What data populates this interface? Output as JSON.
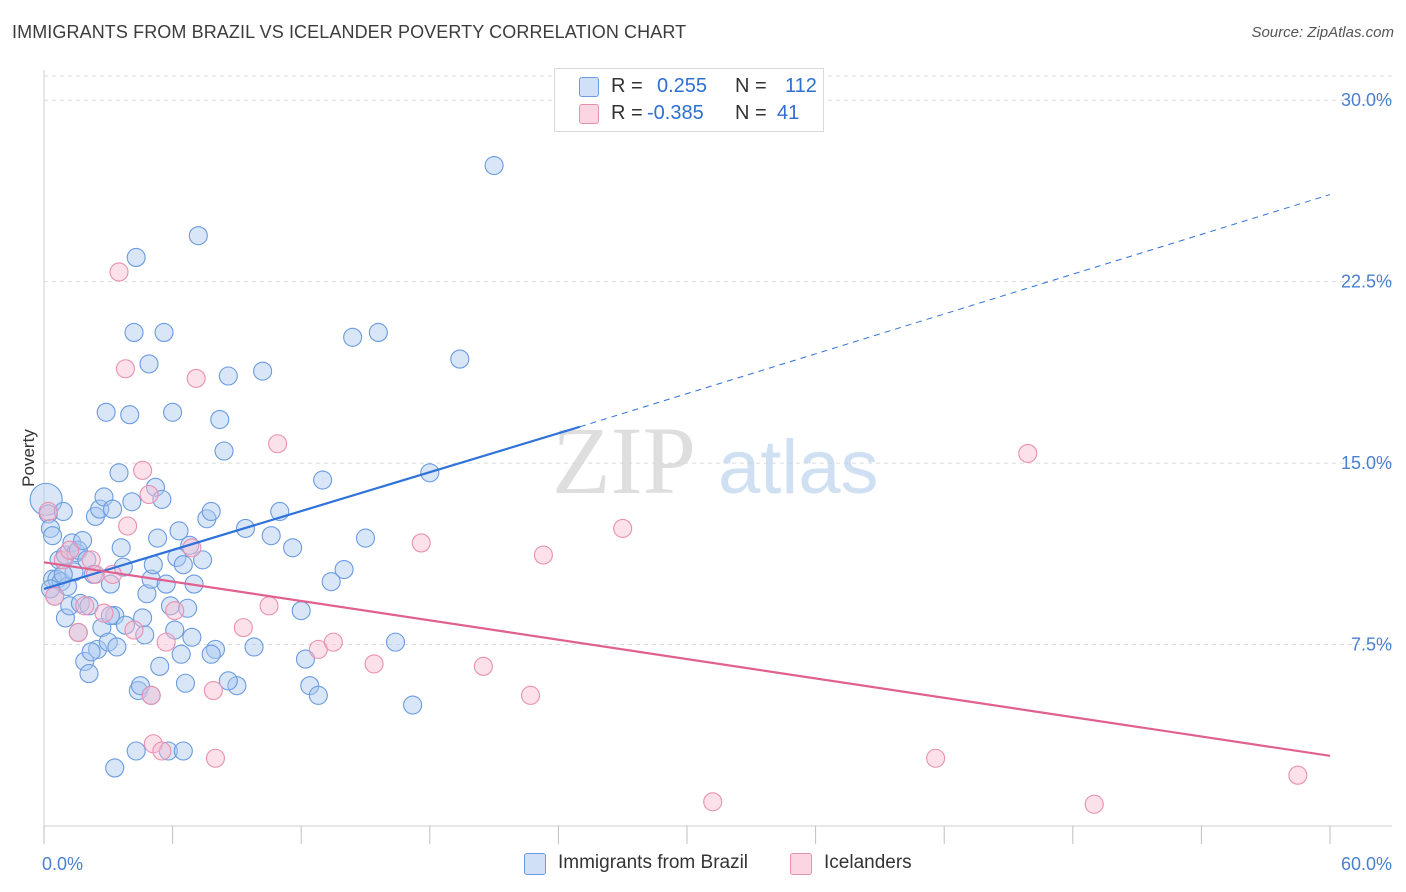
{
  "header": {
    "title": "IMMIGRANTS FROM BRAZIL VS ICELANDER POVERTY CORRELATION CHART",
    "source": "Source: ZipAtlas.com"
  },
  "watermark": {
    "zip": "ZIP",
    "atlas": "atlas"
  },
  "legend": {
    "rows": [
      {
        "r_label": "R =",
        "r_value": "0.255",
        "n_label": "N =",
        "n_value": "112",
        "color": "#a8c8f0",
        "stroke": "#6a9be0"
      },
      {
        "r_label": "R =",
        "r_value": "-0.385",
        "n_label": "N =",
        "n_value": "41",
        "color": "#f8bcd0",
        "stroke": "#e890b0"
      }
    ]
  },
  "bottom_legend": [
    {
      "label": "Immigrants from Brazil",
      "color": "#a8c8f0",
      "stroke": "#6a9be0"
    },
    {
      "label": "Icelanders",
      "color": "#f8bcd0",
      "stroke": "#e890b0"
    }
  ],
  "chart_data": {
    "type": "scatter",
    "title": "IMMIGRANTS FROM BRAZIL VS ICELANDER POVERTY CORRELATION CHART",
    "xlabel": "",
    "ylabel": "Poverty",
    "xlim": [
      0,
      60
    ],
    "ylim": [
      0,
      31
    ],
    "x_tick_labels": [
      {
        "value": 0,
        "label": "0.0%"
      },
      {
        "value": 60,
        "label": "60.0%"
      }
    ],
    "y_tick_labels": [
      {
        "value": 7.5,
        "label": "7.5%"
      },
      {
        "value": 15,
        "label": "15.0%"
      },
      {
        "value": 22.5,
        "label": "22.5%"
      },
      {
        "value": 30,
        "label": "30.0%"
      }
    ],
    "grid": true,
    "legend_position": "top-center",
    "series": [
      {
        "name": "Immigrants from Brazil",
        "color": "#6a9be0",
        "fill": "#a8c8f0",
        "trend": {
          "x0": 0,
          "y0": 9.8,
          "x1": 25,
          "y1": 16.5,
          "dashed_to_x": 60,
          "dashed_to_y": 26.1,
          "color": "#2f72d8"
        },
        "points": [
          [
            0.1,
            13.5
          ],
          [
            0.2,
            12.9
          ],
          [
            0.3,
            12.3
          ],
          [
            0.4,
            12.0
          ],
          [
            0.4,
            10.2
          ],
          [
            0.5,
            9.5
          ],
          [
            0.6,
            10.2
          ],
          [
            0.7,
            11.0
          ],
          [
            0.8,
            10.1
          ],
          [
            0.9,
            13.0
          ],
          [
            1.0,
            8.6
          ],
          [
            1.0,
            11.2
          ],
          [
            1.1,
            9.9
          ],
          [
            1.2,
            9.1
          ],
          [
            1.3,
            11.7
          ],
          [
            1.4,
            10.5
          ],
          [
            1.5,
            11.3
          ],
          [
            1.6,
            11.4
          ],
          [
            1.7,
            9.2
          ],
          [
            1.8,
            11.8
          ],
          [
            1.9,
            6.8
          ],
          [
            2.0,
            11.0
          ],
          [
            2.1,
            9.1
          ],
          [
            2.1,
            6.3
          ],
          [
            2.3,
            10.4
          ],
          [
            2.4,
            12.8
          ],
          [
            2.5,
            7.3
          ],
          [
            2.6,
            13.1
          ],
          [
            2.7,
            8.2
          ],
          [
            2.8,
            13.6
          ],
          [
            2.9,
            17.1
          ],
          [
            3.0,
            7.6
          ],
          [
            3.1,
            10.0
          ],
          [
            3.2,
            13.1
          ],
          [
            3.3,
            8.7
          ],
          [
            3.4,
            7.4
          ],
          [
            3.5,
            14.6
          ],
          [
            3.6,
            11.5
          ],
          [
            3.7,
            10.7
          ],
          [
            3.8,
            8.3
          ],
          [
            4.0,
            17.0
          ],
          [
            4.1,
            13.4
          ],
          [
            4.2,
            20.4
          ],
          [
            4.3,
            23.5
          ],
          [
            4.4,
            5.6
          ],
          [
            4.5,
            5.8
          ],
          [
            4.6,
            8.6
          ],
          [
            4.7,
            7.9
          ],
          [
            4.8,
            9.6
          ],
          [
            4.9,
            19.1
          ],
          [
            5.0,
            10.2
          ],
          [
            5.1,
            10.8
          ],
          [
            5.2,
            14.0
          ],
          [
            5.3,
            11.9
          ],
          [
            5.4,
            6.6
          ],
          [
            5.5,
            13.5
          ],
          [
            5.6,
            20.4
          ],
          [
            5.7,
            10.0
          ],
          [
            5.8,
            3.1
          ],
          [
            5.9,
            9.1
          ],
          [
            6.0,
            17.1
          ],
          [
            6.1,
            8.1
          ],
          [
            6.2,
            11.1
          ],
          [
            6.3,
            12.2
          ],
          [
            6.4,
            7.1
          ],
          [
            6.5,
            10.8
          ],
          [
            6.6,
            5.9
          ],
          [
            6.7,
            9.0
          ],
          [
            6.8,
            11.6
          ],
          [
            6.9,
            7.8
          ],
          [
            7.0,
            10.0
          ],
          [
            7.2,
            24.4
          ],
          [
            7.4,
            11.0
          ],
          [
            7.6,
            12.7
          ],
          [
            7.8,
            13.0
          ],
          [
            8.0,
            7.3
          ],
          [
            8.2,
            16.8
          ],
          [
            8.4,
            15.5
          ],
          [
            8.6,
            18.6
          ],
          [
            9.0,
            5.8
          ],
          [
            9.4,
            12.3
          ],
          [
            9.8,
            7.4
          ],
          [
            10.2,
            18.8
          ],
          [
            10.6,
            12.0
          ],
          [
            11.0,
            13.0
          ],
          [
            11.6,
            11.5
          ],
          [
            12.0,
            8.9
          ],
          [
            12.4,
            5.8
          ],
          [
            12.8,
            5.4
          ],
          [
            13.0,
            14.3
          ],
          [
            13.4,
            10.1
          ],
          [
            14.0,
            10.6
          ],
          [
            14.4,
            20.2
          ],
          [
            15.0,
            11.9
          ],
          [
            15.6,
            20.4
          ],
          [
            16.4,
            7.6
          ],
          [
            17.2,
            5.0
          ],
          [
            18.0,
            14.6
          ],
          [
            19.4,
            19.3
          ],
          [
            21.0,
            27.3
          ],
          [
            3.3,
            2.4
          ],
          [
            4.3,
            3.1
          ],
          [
            0.3,
            9.8
          ],
          [
            2.2,
            7.2
          ],
          [
            5.0,
            5.4
          ],
          [
            7.8,
            7.1
          ],
          [
            1.6,
            8.0
          ],
          [
            3.1,
            8.7
          ],
          [
            8.6,
            6.0
          ],
          [
            12.2,
            6.9
          ],
          [
            6.5,
            3.1
          ],
          [
            0.9,
            10.4
          ]
        ]
      },
      {
        "name": "Icelanders",
        "color": "#e890b0",
        "fill": "#f8bcd0",
        "trend": {
          "x0": 0,
          "y0": 10.9,
          "x1": 60,
          "y1": 2.9,
          "color": "#e0608f"
        },
        "points": [
          [
            0.2,
            13.0
          ],
          [
            0.5,
            9.5
          ],
          [
            0.9,
            11.0
          ],
          [
            1.2,
            11.4
          ],
          [
            1.6,
            8.0
          ],
          [
            1.9,
            9.1
          ],
          [
            2.2,
            11.0
          ],
          [
            2.4,
            10.4
          ],
          [
            2.8,
            8.8
          ],
          [
            3.2,
            10.4
          ],
          [
            3.5,
            22.9
          ],
          [
            3.8,
            18.9
          ],
          [
            3.9,
            12.4
          ],
          [
            4.2,
            8.1
          ],
          [
            4.6,
            14.7
          ],
          [
            4.9,
            13.7
          ],
          [
            5.0,
            5.4
          ],
          [
            5.1,
            3.4
          ],
          [
            5.5,
            3.1
          ],
          [
            5.7,
            7.6
          ],
          [
            6.1,
            8.9
          ],
          [
            6.9,
            11.5
          ],
          [
            7.1,
            18.5
          ],
          [
            7.9,
            5.6
          ],
          [
            8.0,
            2.8
          ],
          [
            9.3,
            8.2
          ],
          [
            10.5,
            9.1
          ],
          [
            10.9,
            15.8
          ],
          [
            12.8,
            7.3
          ],
          [
            13.5,
            7.6
          ],
          [
            15.4,
            6.7
          ],
          [
            17.6,
            11.7
          ],
          [
            20.5,
            6.6
          ],
          [
            22.7,
            5.4
          ],
          [
            23.3,
            11.2
          ],
          [
            27.0,
            12.3
          ],
          [
            31.2,
            1.0
          ],
          [
            41.6,
            2.8
          ],
          [
            45.9,
            15.4
          ],
          [
            49.0,
            0.9
          ],
          [
            58.5,
            2.1
          ]
        ]
      }
    ]
  }
}
